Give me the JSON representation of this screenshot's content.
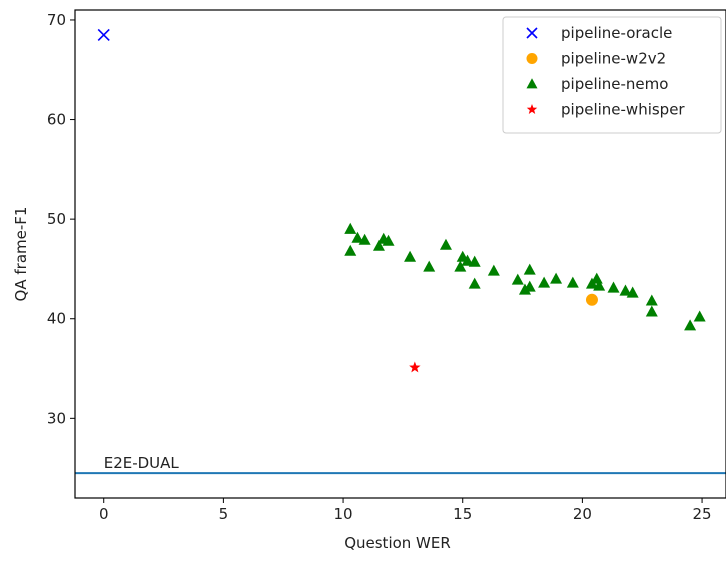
{
  "chart_data": {
    "type": "scatter",
    "xlabel": "Question WER",
    "ylabel": "QA frame-F1",
    "xlim": [
      -1.2,
      26
    ],
    "ylim": [
      22,
      71
    ],
    "x_ticks": [
      0,
      5,
      10,
      15,
      20,
      25
    ],
    "y_ticks": [
      30,
      40,
      50,
      60,
      70
    ],
    "grid": false,
    "legend_position": "top-right",
    "series": [
      {
        "name": "pipeline-oracle",
        "marker": "x",
        "color": "#0000ff",
        "points": [
          [
            0,
            68.5
          ]
        ]
      },
      {
        "name": "pipeline-w2v2",
        "marker": "circle",
        "color": "#ffa500",
        "points": [
          [
            20.4,
            41.9
          ]
        ]
      },
      {
        "name": "pipeline-nemo",
        "marker": "triangle",
        "color": "#008000",
        "points": [
          [
            10.3,
            49.0
          ],
          [
            10.3,
            46.8
          ],
          [
            10.6,
            48.1
          ],
          [
            10.9,
            47.9
          ],
          [
            11.5,
            47.3
          ],
          [
            11.7,
            48.0
          ],
          [
            11.9,
            47.8
          ],
          [
            12.8,
            46.2
          ],
          [
            13.6,
            45.2
          ],
          [
            14.3,
            47.4
          ],
          [
            14.9,
            45.2
          ],
          [
            15.0,
            46.2
          ],
          [
            15.2,
            45.8
          ],
          [
            15.5,
            45.7
          ],
          [
            15.5,
            43.5
          ],
          [
            16.3,
            44.8
          ],
          [
            17.3,
            43.9
          ],
          [
            17.6,
            42.9
          ],
          [
            17.8,
            44.9
          ],
          [
            17.8,
            43.2
          ],
          [
            18.4,
            43.6
          ],
          [
            18.9,
            44.0
          ],
          [
            19.6,
            43.6
          ],
          [
            20.4,
            43.5
          ],
          [
            20.6,
            44.0
          ],
          [
            20.7,
            43.3
          ],
          [
            21.3,
            43.1
          ],
          [
            21.8,
            42.8
          ],
          [
            22.1,
            42.6
          ],
          [
            22.9,
            41.8
          ],
          [
            22.9,
            40.7
          ],
          [
            24.5,
            39.3
          ],
          [
            24.9,
            40.2
          ]
        ]
      },
      {
        "name": "pipeline-whisper",
        "marker": "star",
        "color": "#ff0000",
        "points": [
          [
            13.0,
            35.1
          ]
        ]
      }
    ],
    "reference_line": {
      "label": "E2E-DUAL",
      "y": 24.5,
      "color": "#1f77b4"
    }
  }
}
